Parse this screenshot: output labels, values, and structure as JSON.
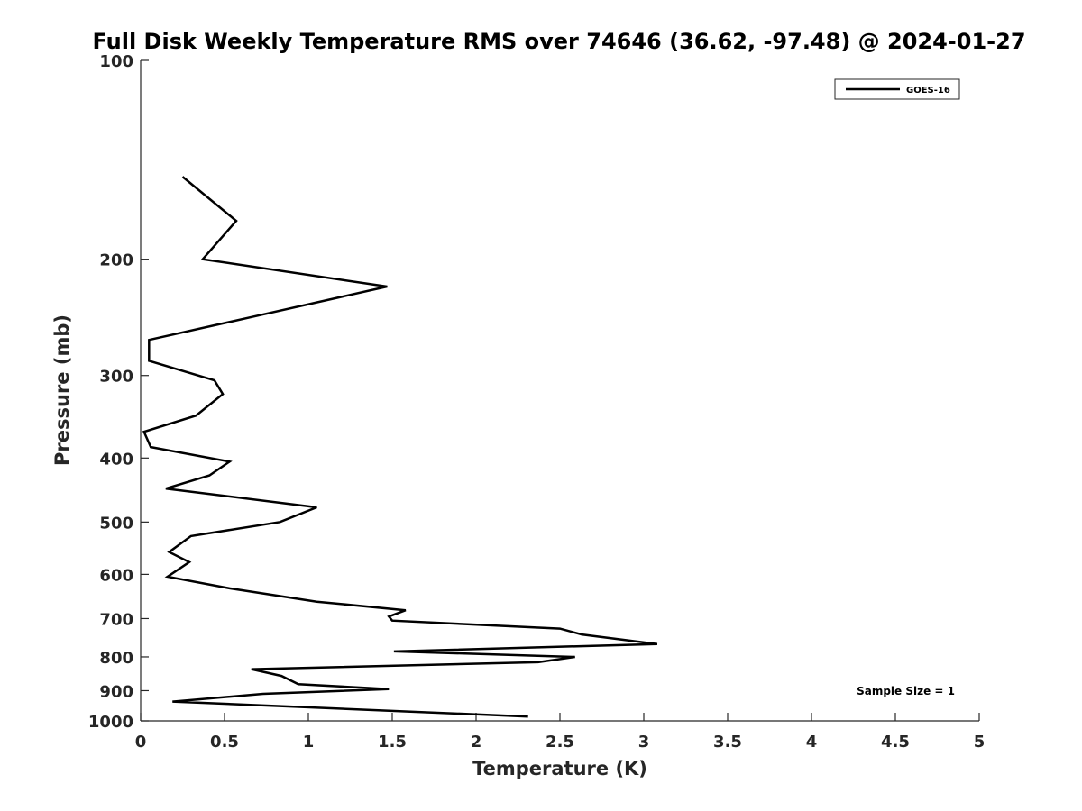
{
  "chart_data": {
    "type": "line",
    "title": "Full Disk Weekly Temperature RMS over 74646 (36.62, -97.48) @ 2024-01-27",
    "xlabel": "Temperature (K)",
    "ylabel": "Pressure (mb)",
    "xlim": [
      0,
      5
    ],
    "ylim": [
      100,
      1000
    ],
    "y_scale": "log",
    "y_reversed": true,
    "x_ticks": [
      "0",
      "0.5",
      "1",
      "1.5",
      "2",
      "2.5",
      "3",
      "3.5",
      "4",
      "4.5",
      "5"
    ],
    "y_ticks": [
      "100",
      "200",
      "300",
      "400",
      "500",
      "600",
      "700",
      "800",
      "900",
      "1000"
    ],
    "grid": false,
    "legend_position": "top-right",
    "annotation": "Sample Size = 1",
    "series": [
      {
        "name": "GOES-16",
        "color": "#000000",
        "points": [
          [
            0.25,
            150
          ],
          [
            0.57,
            175
          ],
          [
            0.37,
            200
          ],
          [
            1.47,
            220
          ],
          [
            0.65,
            245
          ],
          [
            0.05,
            265
          ],
          [
            0.05,
            285
          ],
          [
            0.44,
            305
          ],
          [
            0.49,
            320
          ],
          [
            0.33,
            345
          ],
          [
            0.02,
            365
          ],
          [
            0.06,
            385
          ],
          [
            0.53,
            405
          ],
          [
            0.41,
            425
          ],
          [
            0.15,
            445
          ],
          [
            1.05,
            475
          ],
          [
            0.83,
            500
          ],
          [
            0.3,
            525
          ],
          [
            0.17,
            555
          ],
          [
            0.29,
            575
          ],
          [
            0.16,
            605
          ],
          [
            0.53,
            630
          ],
          [
            1.05,
            660
          ],
          [
            1.58,
            680
          ],
          [
            1.48,
            695
          ],
          [
            1.5,
            705
          ],
          [
            2.5,
            725
          ],
          [
            2.63,
            740
          ],
          [
            3.08,
            765
          ],
          [
            1.51,
            785
          ],
          [
            2.59,
            800
          ],
          [
            2.37,
            815
          ],
          [
            0.66,
            835
          ],
          [
            0.84,
            855
          ],
          [
            0.94,
            880
          ],
          [
            1.48,
            895
          ],
          [
            0.73,
            910
          ],
          [
            0.19,
            935
          ],
          [
            2.31,
            985
          ]
        ]
      }
    ]
  }
}
